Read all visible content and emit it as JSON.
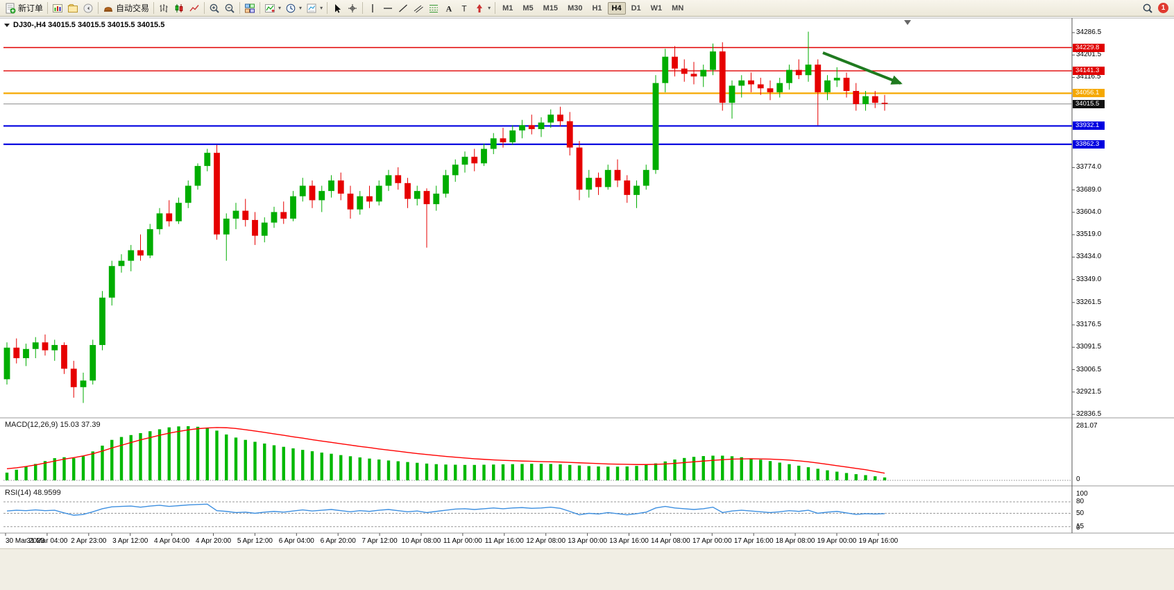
{
  "toolbar": {
    "groups": [
      {
        "items": [
          {
            "icon": "new-order",
            "name": "new-order-button",
            "label": "新订单"
          }
        ]
      },
      {
        "items": [
          {
            "icon": "chart-window",
            "name": "new-chart-button"
          },
          {
            "icon": "profiles",
            "name": "profiles-button"
          },
          {
            "icon": "sound",
            "name": "alerts-button"
          }
        ]
      },
      {
        "items": [
          {
            "icon": "auto-trading",
            "name": "auto-trading-button",
            "label": "自动交易"
          }
        ]
      },
      {
        "items": [
          {
            "icon": "bars-chart",
            "name": "bar-chart-button"
          },
          {
            "icon": "candles-chart",
            "name": "candlestick-chart-button"
          },
          {
            "icon": "line-chart",
            "name": "line-chart-button"
          }
        ]
      },
      {
        "items": [
          {
            "icon": "zoom-in",
            "name": "zoom-in-button"
          },
          {
            "icon": "zoom-out",
            "name": "zoom-out-button"
          }
        ]
      },
      {
        "items": [
          {
            "icon": "tile-windows",
            "name": "tile-windows-button"
          }
        ]
      },
      {
        "items": [
          {
            "icon": "indicators",
            "name": "indicators-button",
            "dropdown": true
          },
          {
            "icon": "periods",
            "name": "periods-button",
            "dropdown": true
          },
          {
            "icon": "templates",
            "name": "templates-button",
            "dropdown": true
          }
        ]
      },
      {
        "items": [
          {
            "icon": "cursor",
            "name": "cursor-button"
          },
          {
            "icon": "crosshair",
            "name": "crosshair-button"
          }
        ]
      },
      {
        "items": [
          {
            "icon": "vline",
            "name": "vertical-line-button"
          },
          {
            "icon": "hline",
            "name": "horizontal-line-button"
          },
          {
            "icon": "trendline",
            "name": "trendline-button"
          },
          {
            "icon": "channel",
            "name": "equidistant-channel-button"
          },
          {
            "icon": "fibo",
            "name": "fibonacci-button"
          },
          {
            "icon": "text",
            "name": "text-button"
          },
          {
            "icon": "label",
            "name": "text-label-button"
          },
          {
            "icon": "arrows",
            "name": "arrows-button",
            "dropdown": true
          }
        ]
      }
    ],
    "timeframes": [
      "M1",
      "M5",
      "M15",
      "M30",
      "H1",
      "H4",
      "D1",
      "W1",
      "MN"
    ],
    "active_timeframe": "H4",
    "notification_count": "1"
  },
  "chart_header": {
    "title_ohlc": "DJ30-,H4 34015.5 34015.5 34015.5 34015.5"
  },
  "chart_data": {
    "type": "candlestick",
    "symbol": "DJ30-",
    "timeframe": "H4",
    "colors": {
      "up": "#00ad00",
      "down": "#e60000",
      "macd_hist": "#00b800",
      "macd_signal": "#ff0000",
      "rsi_line": "#3d8fe0",
      "arrow": "#1f7a1f"
    },
    "price_axis": {
      "max_price": 34286.5,
      "min_price": 32836.5,
      "labels": [
        "34286.5",
        "34201.5",
        "34116.5",
        "33774.0",
        "33689.0",
        "33604.0",
        "33519.0",
        "33434.0",
        "33349.0",
        "33261.5",
        "33176.5",
        "33091.5",
        "33006.5",
        "32921.5",
        "32836.5"
      ]
    },
    "time_axis_labels": [
      "30 Mar 2023",
      "31 Mar 04:00",
      "2 Apr 23:00",
      "3 Apr 12:00",
      "4 Apr 04:00",
      "4 Apr 20:00",
      "5 Apr 12:00",
      "6 Apr 04:00",
      "6 Apr 20:00",
      "7 Apr 12:00",
      "10 Apr 08:00",
      "11 Apr 00:00",
      "11 Apr 16:00",
      "12 Apr 08:00",
      "13 Apr 00:00",
      "13 Apr 16:00",
      "14 Apr 08:00",
      "17 Apr 00:00",
      "17 Apr 16:00",
      "18 Apr 08:00",
      "19 Apr 00:00",
      "19 Apr 16:00"
    ],
    "horizontal_lines": [
      {
        "label": "34229.8",
        "price": 34229.8,
        "color": "#e00000",
        "width": 1.4
      },
      {
        "label": "34141.3",
        "price": 34141.3,
        "color": "#e00000",
        "width": 1.4
      },
      {
        "label": "34056.1",
        "price": 34056.1,
        "color": "#f5a800",
        "width": 2.2
      },
      {
        "label": "33932.1",
        "price": 33932.1,
        "color": "#0000e0",
        "width": 2.2
      },
      {
        "label": "33862.3",
        "price": 33862.3,
        "color": "#0000e0",
        "width": 2.2
      }
    ],
    "current_price": {
      "label": "34015.5",
      "price": 34015.5,
      "line_color": "#888888",
      "tag_color": "#111111"
    },
    "candles_ohlc": [
      [
        32970,
        33110,
        32950,
        33090
      ],
      [
        33090,
        33125,
        33030,
        33050
      ],
      [
        33050,
        33105,
        33020,
        33085
      ],
      [
        33085,
        33130,
        33050,
        33110
      ],
      [
        33110,
        33140,
        33060,
        33080
      ],
      [
        33080,
        33120,
        33040,
        33100
      ],
      [
        33100,
        33110,
        32990,
        33010
      ],
      [
        33010,
        33040,
        32900,
        32940
      ],
      [
        32940,
        32995,
        32880,
        32965
      ],
      [
        32965,
        33120,
        32950,
        33100
      ],
      [
        33100,
        33305,
        33080,
        33280
      ],
      [
        33280,
        33420,
        33250,
        33400
      ],
      [
        33400,
        33445,
        33375,
        33420
      ],
      [
        33420,
        33480,
        33380,
        33460
      ],
      [
        33460,
        33520,
        33420,
        33440
      ],
      [
        33440,
        33560,
        33430,
        33540
      ],
      [
        33540,
        33620,
        33520,
        33600
      ],
      [
        33600,
        33650,
        33550,
        33570
      ],
      [
        33570,
        33660,
        33560,
        33640
      ],
      [
        33640,
        33725,
        33620,
        33705
      ],
      [
        33705,
        33790,
        33690,
        33780
      ],
      [
        33780,
        33845,
        33760,
        33830
      ],
      [
        33830,
        33860,
        33500,
        33520
      ],
      [
        33520,
        33600,
        33420,
        33580
      ],
      [
        33580,
        33640,
        33540,
        33610
      ],
      [
        33610,
        33655,
        33550,
        33575
      ],
      [
        33575,
        33605,
        33480,
        33515
      ],
      [
        33515,
        33585,
        33490,
        33565
      ],
      [
        33565,
        33625,
        33545,
        33605
      ],
      [
        33605,
        33645,
        33560,
        33580
      ],
      [
        33580,
        33685,
        33570,
        33665
      ],
      [
        33665,
        33735,
        33645,
        33705
      ],
      [
        33705,
        33725,
        33620,
        33650
      ],
      [
        33650,
        33705,
        33605,
        33685
      ],
      [
        33685,
        33745,
        33660,
        33725
      ],
      [
        33725,
        33755,
        33650,
        33675
      ],
      [
        33675,
        33705,
        33580,
        33615
      ],
      [
        33615,
        33685,
        33595,
        33665
      ],
      [
        33665,
        33705,
        33620,
        33645
      ],
      [
        33645,
        33725,
        33630,
        33705
      ],
      [
        33705,
        33765,
        33685,
        33745
      ],
      [
        33745,
        33775,
        33690,
        33715
      ],
      [
        33715,
        33735,
        33620,
        33655
      ],
      [
        33655,
        33705,
        33630,
        33685
      ],
      [
        33685,
        33695,
        33470,
        33635
      ],
      [
        33635,
        33705,
        33610,
        33675
      ],
      [
        33675,
        33765,
        33660,
        33745
      ],
      [
        33745,
        33805,
        33720,
        33785
      ],
      [
        33785,
        33835,
        33755,
        33815
      ],
      [
        33815,
        33845,
        33760,
        33790
      ],
      [
        33790,
        33865,
        33780,
        33845
      ],
      [
        33845,
        33905,
        33825,
        33885
      ],
      [
        33885,
        33925,
        33850,
        33870
      ],
      [
        33870,
        33935,
        33860,
        33915
      ],
      [
        33915,
        33955,
        33885,
        33935
      ],
      [
        33935,
        33975,
        33900,
        33920
      ],
      [
        33920,
        33965,
        33890,
        33945
      ],
      [
        33945,
        33995,
        33925,
        33975
      ],
      [
        33975,
        34005,
        33930,
        33950
      ],
      [
        33950,
        33985,
        33820,
        33850
      ],
      [
        33850,
        33875,
        33650,
        33690
      ],
      [
        33690,
        33765,
        33660,
        33735
      ],
      [
        33735,
        33755,
        33670,
        33700
      ],
      [
        33700,
        33785,
        33690,
        33765
      ],
      [
        33765,
        33805,
        33700,
        33725
      ],
      [
        33725,
        33745,
        33640,
        33670
      ],
      [
        33670,
        33725,
        33620,
        33705
      ],
      [
        33705,
        33785,
        33690,
        33765
      ],
      [
        33765,
        34125,
        33750,
        34095
      ],
      [
        34095,
        34225,
        34060,
        34195
      ],
      [
        34195,
        34235,
        34120,
        34150
      ],
      [
        34150,
        34185,
        34100,
        34130
      ],
      [
        34130,
        34175,
        34090,
        34120
      ],
      [
        34120,
        34165,
        34080,
        34145
      ],
      [
        34145,
        34245,
        34125,
        34215
      ],
      [
        34215,
        34250,
        33990,
        34020
      ],
      [
        34020,
        34105,
        33960,
        34085
      ],
      [
        34085,
        34125,
        34040,
        34105
      ],
      [
        34105,
        34135,
        34060,
        34090
      ],
      [
        34090,
        34115,
        34050,
        34075
      ],
      [
        34075,
        34105,
        34030,
        34060
      ],
      [
        34060,
        34115,
        34040,
        34095
      ],
      [
        34095,
        34165,
        34070,
        34145
      ],
      [
        34145,
        34185,
        34110,
        34125
      ],
      [
        34125,
        34290,
        34100,
        34165
      ],
      [
        34165,
        34185,
        33935,
        34060
      ],
      [
        34060,
        34125,
        34030,
        34105
      ],
      [
        34105,
        34155,
        34080,
        34115
      ],
      [
        34115,
        34135,
        34040,
        34065
      ],
      [
        34065,
        34095,
        33990,
        34015
      ],
      [
        34015,
        34065,
        33990,
        34045
      ],
      [
        34045,
        34065,
        34000,
        34020
      ],
      [
        34020,
        34050,
        33990,
        34016
      ]
    ],
    "indicators": {
      "macd": {
        "label": "MACD(12,26,9)",
        "value_text": "15.03 37.39",
        "axis_max_label": "281.07",
        "axis_zero_label": "0",
        "scale_max": 281.07,
        "histogram": [
          40,
          55,
          70,
          85,
          100,
          115,
          120,
          115,
          125,
          150,
          180,
          210,
          225,
          235,
          245,
          255,
          265,
          275,
          280,
          281,
          278,
          272,
          258,
          238,
          222,
          210,
          200,
          191,
          182,
          174,
          166,
          158,
          151,
          144,
          138,
          131,
          125,
          119,
          113,
          108,
          103,
          99,
          95,
          91,
          87,
          84,
          82,
          81,
          80,
          80,
          81,
          82,
          83,
          84,
          85,
          86,
          86,
          85,
          83,
          80,
          77,
          74,
          72,
          71,
          71,
          72,
          75,
          80,
          88,
          98,
          108,
          116,
          122,
          126,
          128,
          128,
          125,
          120,
          114,
          107,
          100,
          92,
          84,
          76,
          68,
          60,
          52,
          45,
          38,
          32,
          27,
          21,
          15
        ],
        "signal": [
          60,
          65,
          72,
          80,
          90,
          100,
          110,
          118,
          127,
          138,
          152,
          168,
          182,
          196,
          210,
          222,
          234,
          245,
          254,
          262,
          268,
          272,
          274,
          273,
          269,
          263,
          256,
          249,
          241,
          234,
          226,
          219,
          211,
          204,
          197,
          190,
          183,
          176,
          170,
          163,
          157,
          151,
          145,
          139,
          134,
          129,
          124,
          120,
          116,
          112,
          109,
          106,
          104,
          102,
          100,
          99,
          97,
          96,
          95,
          93,
          91,
          89,
          87,
          85,
          84,
          83,
          82,
          82,
          83,
          85,
          88,
          92,
          96,
          100,
          104,
          107,
          110,
          111,
          112,
          111,
          110,
          108,
          105,
          101,
          96,
          90,
          83,
          76,
          69,
          62,
          55,
          46,
          37
        ]
      },
      "rsi": {
        "label": "RSI(14)",
        "value_text": "48.9599",
        "axis_labels": [
          "100",
          "80",
          "50",
          "15",
          "0"
        ],
        "levels": [
          80,
          50,
          15
        ],
        "values": [
          56,
          58,
          57,
          59,
          57,
          58,
          51,
          45,
          47,
          54,
          62,
          67,
          68,
          69,
          66,
          69,
          71,
          68,
          70,
          72,
          73,
          74,
          57,
          55,
          52,
          53,
          50,
          53,
          55,
          53,
          56,
          59,
          56,
          58,
          60,
          57,
          54,
          57,
          55,
          58,
          60,
          57,
          54,
          56,
          52,
          55,
          58,
          61,
          62,
          60,
          62,
          64,
          62,
          64,
          65,
          63,
          64,
          66,
          63,
          55,
          46,
          50,
          48,
          52,
          49,
          46,
          49,
          53,
          64,
          68,
          64,
          62,
          60,
          62,
          66,
          52,
          56,
          58,
          56,
          54,
          52,
          54,
          57,
          55,
          58,
          50,
          53,
          55,
          51,
          47,
          49,
          48,
          48.96
        ]
      }
    },
    "annotation_arrow": {
      "color": "#1f7a1f"
    }
  }
}
